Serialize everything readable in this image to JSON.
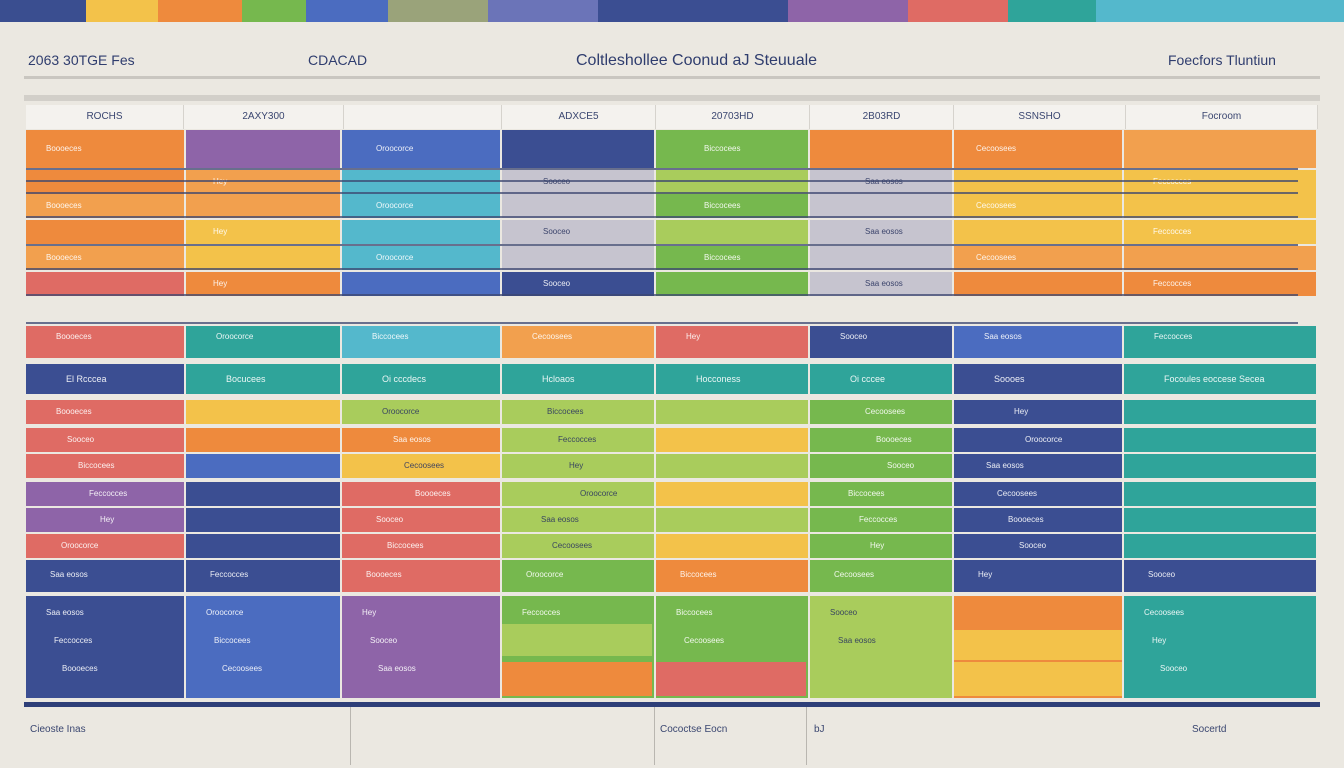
{
  "header": {
    "left_title": "2063 30TGE Fes",
    "sub_title": "CDACAD",
    "center_title": "Coltleshollee Coonud aJ Steuuale",
    "right_title": "Foecfors Tluntiun"
  },
  "columns": [
    "ROCHS",
    "2AXY300",
    "",
    "ADXCE5",
    "20703HD",
    "2B03RD",
    "SSNSHO",
    "Focroom"
  ],
  "section_row": {
    "labels": [
      "El Rcccea",
      "Bocucees",
      "Oi cccdecs",
      "Hcloaos",
      "Hocconess",
      "Oi cccee",
      "Soooes",
      "Focoules eoccese Secea"
    ]
  },
  "cell_text": [
    "Boooeces",
    "Oroocorce",
    "Biccocees",
    "Cecoosees",
    "Hey",
    "Sooceo",
    "Saa eosos",
    "Feccocces"
  ],
  "footer": {
    "left": "Cieoste Inas",
    "middle": "Cococtse Eocn",
    "small": "bJ",
    "right": "Socertd"
  },
  "colors": {
    "orange": "#ee8a3d",
    "peach": "#f2a04e",
    "yellow": "#f3c24a",
    "red": "#df6b64",
    "purple": "#8e64a8",
    "navy": "#3b4e92",
    "blue": "#4b6cc0",
    "teal": "#2fa49a",
    "cyan": "#54b8cc",
    "green": "#76b84e",
    "lime": "#a9cc5c",
    "grey": "#c6c4cf"
  }
}
